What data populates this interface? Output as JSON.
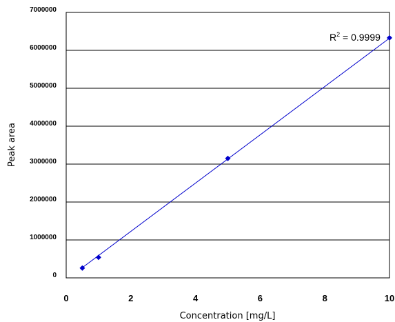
{
  "chart_data": {
    "type": "scatter",
    "xlabel": "Concentration [mg/L]",
    "ylabel": "Peak area",
    "xlim": [
      0,
      10
    ],
    "ylim": [
      0,
      7000000
    ],
    "xticks": [
      "0",
      "2",
      "4",
      "6",
      "8",
      "10"
    ],
    "yticks": [
      "0",
      "1000000",
      "2000000",
      "3000000",
      "4000000",
      "5000000",
      "6000000",
      "7000000"
    ],
    "grid": "horizontal",
    "series": [
      {
        "marker": "diamond",
        "color": "#0000cc",
        "x": [
          0.5,
          1,
          5,
          10
        ],
        "y": [
          260000,
          540000,
          3150000,
          6330000
        ]
      }
    ],
    "trendline": {
      "type": "linear",
      "color": "#0000cc",
      "x": [
        0.5,
        10
      ],
      "y": [
        270000,
        6320000
      ]
    },
    "annotation": {
      "prefix": "R",
      "superscript": "2",
      "suffix": " = 0.9999"
    }
  }
}
